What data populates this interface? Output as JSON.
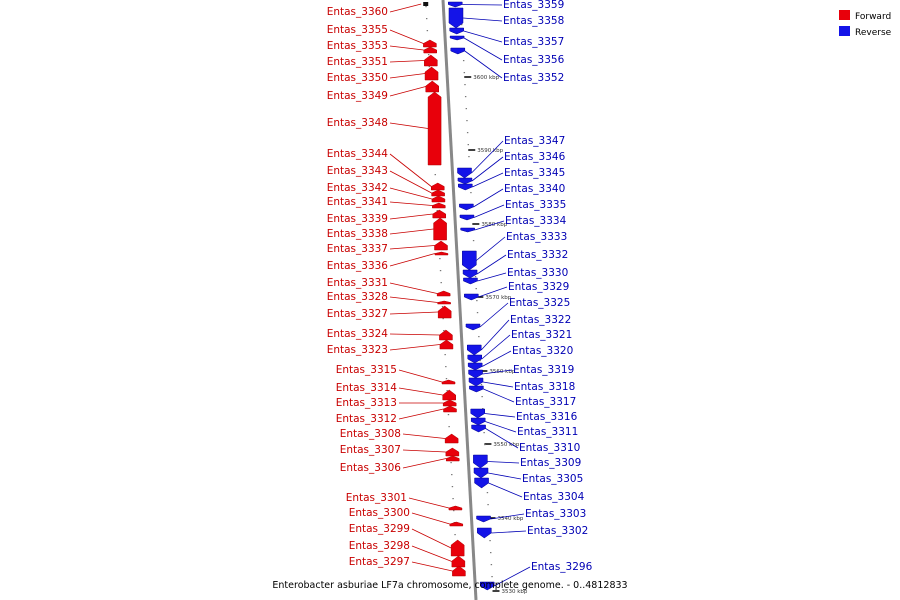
{
  "colors": {
    "forward": "#e8000b",
    "reverse": "#1414e8",
    "forward_text": "#c80000",
    "reverse_text": "#0000b4",
    "backbone": "#888888"
  },
  "legend": {
    "forward_label": "Forward",
    "reverse_label": "Reverse"
  },
  "caption": "Enterobacter asburiae LF7a chromosome, complete genome. - 0..4812833",
  "ruler_ticks": [
    "3600 kbp",
    "3590 kbp",
    "3580 kbp",
    "3570 kbp",
    "3560 kbp",
    "3550 kbp",
    "3540 kbp",
    "3530 kbp"
  ],
  "forward_genes": [
    "Entas_3360",
    "Entas_3355",
    "Entas_3353",
    "Entas_3351",
    "Entas_3350",
    "Entas_3349",
    "Entas_3348",
    "Entas_3344",
    "Entas_3343",
    "Entas_3342",
    "Entas_3341",
    "Entas_3339",
    "Entas_3338",
    "Entas_3337",
    "Entas_3336",
    "Entas_3331",
    "Entas_3328",
    "Entas_3327",
    "Entas_3324",
    "Entas_3323",
    "Entas_3315",
    "Entas_3314",
    "Entas_3313",
    "Entas_3312",
    "Entas_3308",
    "Entas_3307",
    "Entas_3306",
    "Entas_3301",
    "Entas_3300",
    "Entas_3299",
    "Entas_3298",
    "Entas_3297"
  ],
  "reverse_genes": [
    "Entas_3359",
    "Entas_3358",
    "Entas_3357",
    "Entas_3356",
    "Entas_3352",
    "Entas_3347",
    "Entas_3346",
    "Entas_3345",
    "Entas_3340",
    "Entas_3335",
    "Entas_3334",
    "Entas_3333",
    "Entas_3332",
    "Entas_3330",
    "Entas_3329",
    "Entas_3325",
    "Entas_3322",
    "Entas_3321",
    "Entas_3320",
    "Entas_3319",
    "Entas_3318",
    "Entas_3317",
    "Entas_3316",
    "Entas_3311",
    "Entas_3310",
    "Entas_3309",
    "Entas_3305",
    "Entas_3304",
    "Entas_3303",
    "Entas_3302",
    "Entas_3296"
  ]
}
